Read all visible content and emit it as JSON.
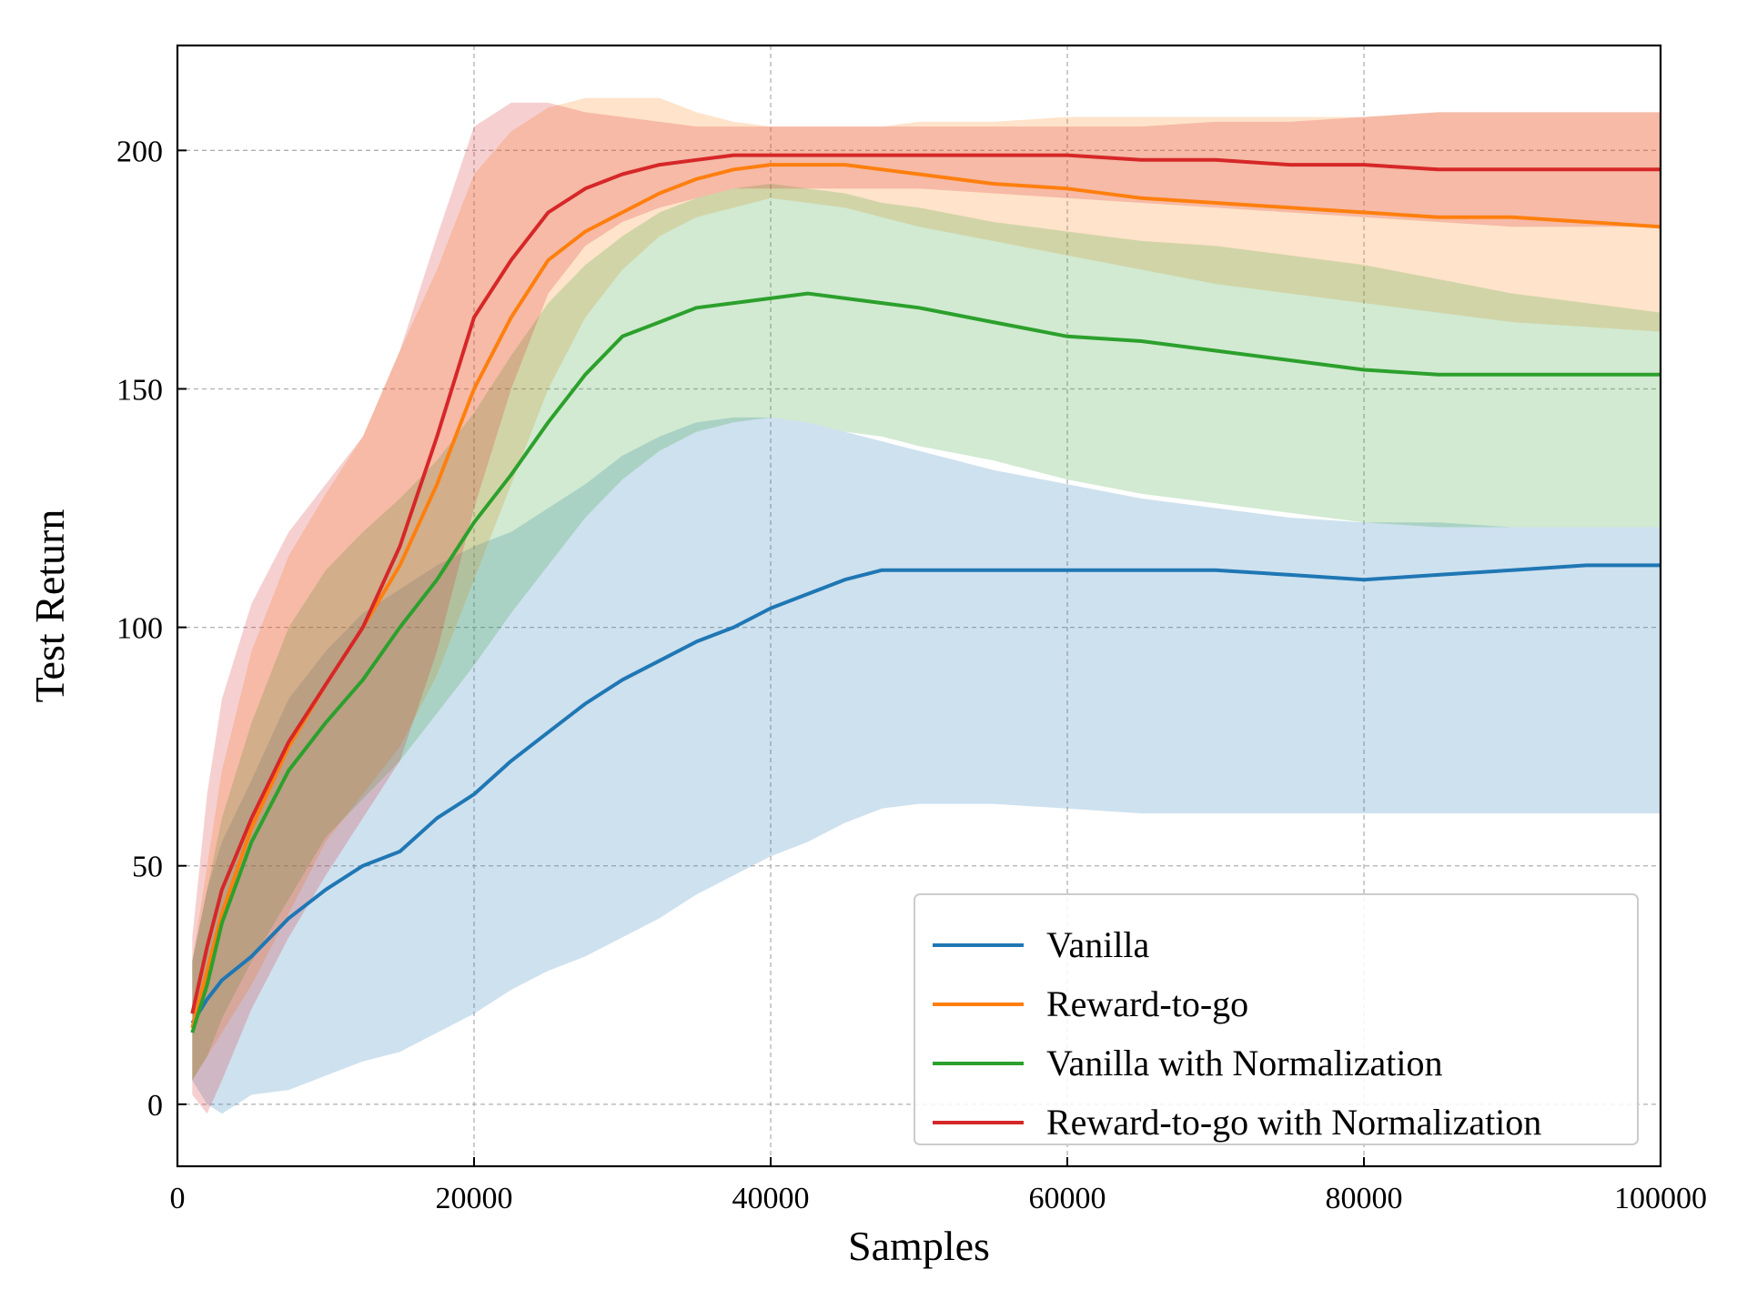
{
  "chart_data": {
    "type": "line",
    "title": "",
    "xlabel": "Samples",
    "ylabel": "Test Return",
    "xlim": [
      0,
      100000
    ],
    "ylim": [
      -13,
      222
    ],
    "xticks": [
      0,
      20000,
      40000,
      60000,
      80000,
      100000
    ],
    "xtick_labels": [
      "0",
      "20000",
      "40000",
      "60000",
      "80000",
      "100000"
    ],
    "yticks": [
      0,
      50,
      100,
      150,
      200
    ],
    "ytick_labels": [
      "0",
      "50",
      "100",
      "150",
      "200"
    ],
    "grid": true,
    "legend_position": "lower-right",
    "x": [
      1000,
      2000,
      3000,
      5000,
      7500,
      10000,
      12500,
      15000,
      17500,
      20000,
      22500,
      25000,
      27500,
      30000,
      32500,
      35000,
      37500,
      40000,
      42500,
      45000,
      47500,
      50000,
      55000,
      60000,
      65000,
      70000,
      75000,
      80000,
      85000,
      90000,
      95000,
      100000
    ],
    "series": [
      {
        "name": "Vanilla",
        "color": "#1f77b4",
        "values": [
          17,
          22,
          26,
          31,
          39,
          45,
          50,
          53,
          60,
          65,
          72,
          78,
          84,
          89,
          93,
          97,
          100,
          104,
          107,
          110,
          112,
          112,
          112,
          112,
          112,
          112,
          111,
          110,
          111,
          112,
          113,
          113
        ],
        "upper": [
          30,
          45,
          55,
          68,
          85,
          95,
          103,
          108,
          113,
          117,
          120,
          125,
          130,
          136,
          140,
          143,
          144,
          144,
          143,
          141,
          139,
          137,
          133,
          130,
          127,
          125,
          123,
          122,
          122,
          121,
          121,
          121
        ],
        "lower": [
          5,
          0,
          -2,
          2,
          3,
          6,
          9,
          11,
          15,
          19,
          24,
          28,
          31,
          35,
          39,
          44,
          48,
          52,
          55,
          59,
          62,
          63,
          63,
          62,
          61,
          61,
          61,
          61,
          61,
          61,
          61,
          61
        ]
      },
      {
        "name": "Reward-to-go",
        "color": "#ff7f0e",
        "values": [
          16,
          28,
          40,
          58,
          75,
          88,
          100,
          113,
          130,
          150,
          165,
          177,
          183,
          187,
          191,
          194,
          196,
          197,
          197,
          197,
          196,
          195,
          193,
          192,
          190,
          189,
          188,
          187,
          186,
          186,
          185,
          184
        ],
        "upper": [
          30,
          50,
          70,
          95,
          115,
          128,
          140,
          158,
          175,
          195,
          204,
          209,
          211,
          211,
          211,
          208,
          206,
          205,
          205,
          205,
          205,
          206,
          206,
          207,
          207,
          207,
          207,
          207,
          208,
          208,
          208,
          208
        ],
        "lower": [
          5,
          10,
          15,
          25,
          40,
          55,
          65,
          75,
          90,
          110,
          130,
          150,
          165,
          175,
          182,
          186,
          188,
          190,
          189,
          188,
          186,
          184,
          181,
          178,
          175,
          172,
          170,
          168,
          166,
          164,
          163,
          162
        ]
      },
      {
        "name": "Vanilla with Normalization",
        "color": "#2ca02c",
        "values": [
          15,
          25,
          38,
          55,
          70,
          80,
          89,
          100,
          110,
          122,
          132,
          143,
          153,
          161,
          164,
          167,
          168,
          169,
          170,
          169,
          168,
          167,
          164,
          161,
          160,
          158,
          156,
          154,
          153,
          153,
          153,
          153
        ],
        "upper": [
          30,
          45,
          60,
          80,
          100,
          112,
          120,
          127,
          135,
          145,
          157,
          168,
          176,
          182,
          187,
          190,
          192,
          193,
          192,
          191,
          189,
          188,
          185,
          183,
          181,
          180,
          178,
          176,
          173,
          170,
          168,
          166
        ],
        "lower": [
          5,
          10,
          18,
          30,
          43,
          56,
          64,
          72,
          82,
          92,
          103,
          113,
          123,
          131,
          137,
          141,
          143,
          144,
          143,
          141,
          140,
          138,
          135,
          131,
          128,
          126,
          124,
          122,
          121,
          121,
          121,
          121
        ]
      },
      {
        "name": "Reward-to-go with Normalization",
        "color": "#d62728",
        "values": [
          19,
          33,
          45,
          60,
          76,
          88,
          100,
          117,
          140,
          165,
          177,
          187,
          192,
          195,
          197,
          198,
          199,
          199,
          199,
          199,
          199,
          199,
          199,
          199,
          198,
          198,
          197,
          197,
          196,
          196,
          196,
          196
        ],
        "upper": [
          35,
          65,
          85,
          105,
          120,
          130,
          140,
          158,
          182,
          205,
          210,
          210,
          208,
          207,
          206,
          205,
          205,
          205,
          205,
          205,
          205,
          205,
          205,
          205,
          205,
          206,
          206,
          207,
          208,
          208,
          208,
          208
        ],
        "lower": [
          2,
          -2,
          5,
          20,
          35,
          48,
          60,
          72,
          95,
          125,
          150,
          170,
          180,
          185,
          188,
          190,
          192,
          192,
          192,
          192,
          192,
          192,
          191,
          190,
          189,
          188,
          187,
          186,
          185,
          184,
          184,
          184
        ]
      }
    ]
  }
}
